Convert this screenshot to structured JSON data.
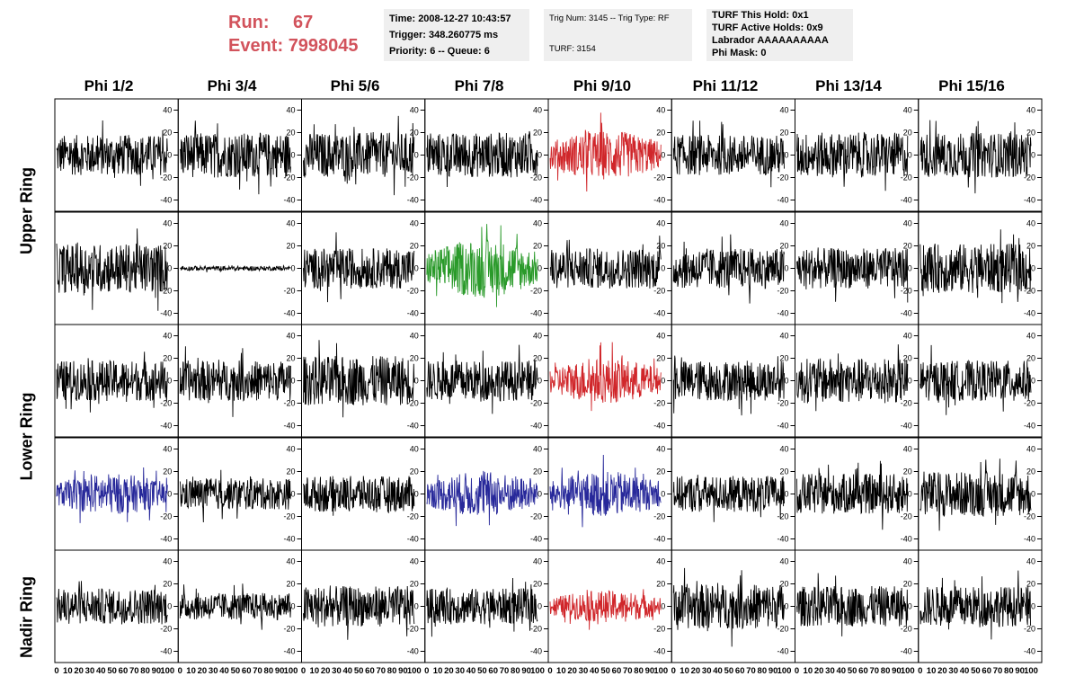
{
  "header": {
    "run_label": "Run:",
    "run_value": "67",
    "event_label": "Event:",
    "event_value": "7998045",
    "time": "Time: 2008-12-27 10:43:57",
    "trigger": "Trigger: 348.260775 ms",
    "priority": "Priority: 6 -- Queue: 6",
    "trig_num": "Trig Num: 3145 -- Trig Type: RF",
    "turf": "TURF: 3154",
    "turf_this_hold": "TURF This Hold: 0x1",
    "turf_active_holds": "TURF Active Holds: 0x9",
    "labrador": "Labrador AAAAAAAAAA",
    "phi_mask": "Phi Mask: 0"
  },
  "columns": [
    "Phi 1/2",
    "Phi 3/4",
    "Phi 5/6",
    "Phi 7/8",
    "Phi 9/10",
    "Phi 11/12",
    "Phi 13/14",
    "Phi 15/16"
  ],
  "rings": [
    "Upper Ring",
    "Lower Ring",
    "Nadir Ring"
  ],
  "colors": {
    "run_text": "#d2535c",
    "trace_default": "#000000",
    "trace_red": "#d0262a",
    "trace_green": "#2a9a2a",
    "trace_blue": "#27289a",
    "info_box_bg": "#efefef"
  },
  "chart_data": {
    "type": "line",
    "grid_rows": 5,
    "grid_cols": 8,
    "ylim": [
      -50,
      50
    ],
    "y_ticks": [
      "40",
      "20",
      "0",
      "-20",
      "-40"
    ],
    "xlim": [
      0,
      100
    ],
    "x_ticks": [
      "0",
      "10",
      "20",
      "30",
      "40",
      "50",
      "60",
      "70",
      "80",
      "90",
      "100"
    ],
    "trace_color_by_row": [
      [
        "black",
        "black",
        "black",
        "black",
        "red",
        "black",
        "black",
        "black"
      ],
      [
        "black",
        "black",
        "black",
        "green",
        "black",
        "black",
        "black",
        "black"
      ],
      [
        "black",
        "black",
        "black",
        "black",
        "red",
        "black",
        "black",
        "black"
      ],
      [
        "blue",
        "black",
        "black",
        "blue",
        "blue",
        "black",
        "black",
        "black"
      ],
      [
        "black",
        "black",
        "black",
        "black",
        "red",
        "black",
        "black",
        "black"
      ]
    ],
    "trace_amplitude_by_row": [
      [
        18,
        20,
        20,
        20,
        22,
        18,
        20,
        20
      ],
      [
        22,
        2,
        18,
        26,
        18,
        18,
        18,
        22
      ],
      [
        18,
        18,
        22,
        18,
        20,
        18,
        20,
        18
      ],
      [
        18,
        14,
        16,
        20,
        20,
        16,
        18,
        20
      ],
      [
        16,
        12,
        18,
        16,
        14,
        20,
        18,
        18
      ]
    ]
  }
}
